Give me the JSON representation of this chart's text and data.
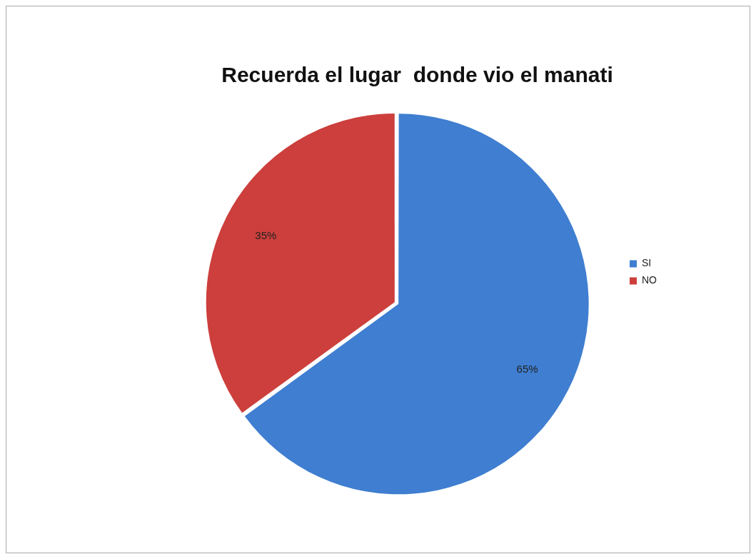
{
  "chart_data": {
    "type": "pie",
    "title": "Recuerda el lugar  donde vio el manati",
    "categories": [
      "SI",
      "NO"
    ],
    "values": [
      65,
      35
    ],
    "colors": [
      "#3f7ed0",
      "#cc3f3c"
    ],
    "value_labels": [
      "65%",
      "35%"
    ],
    "legend": "right"
  }
}
